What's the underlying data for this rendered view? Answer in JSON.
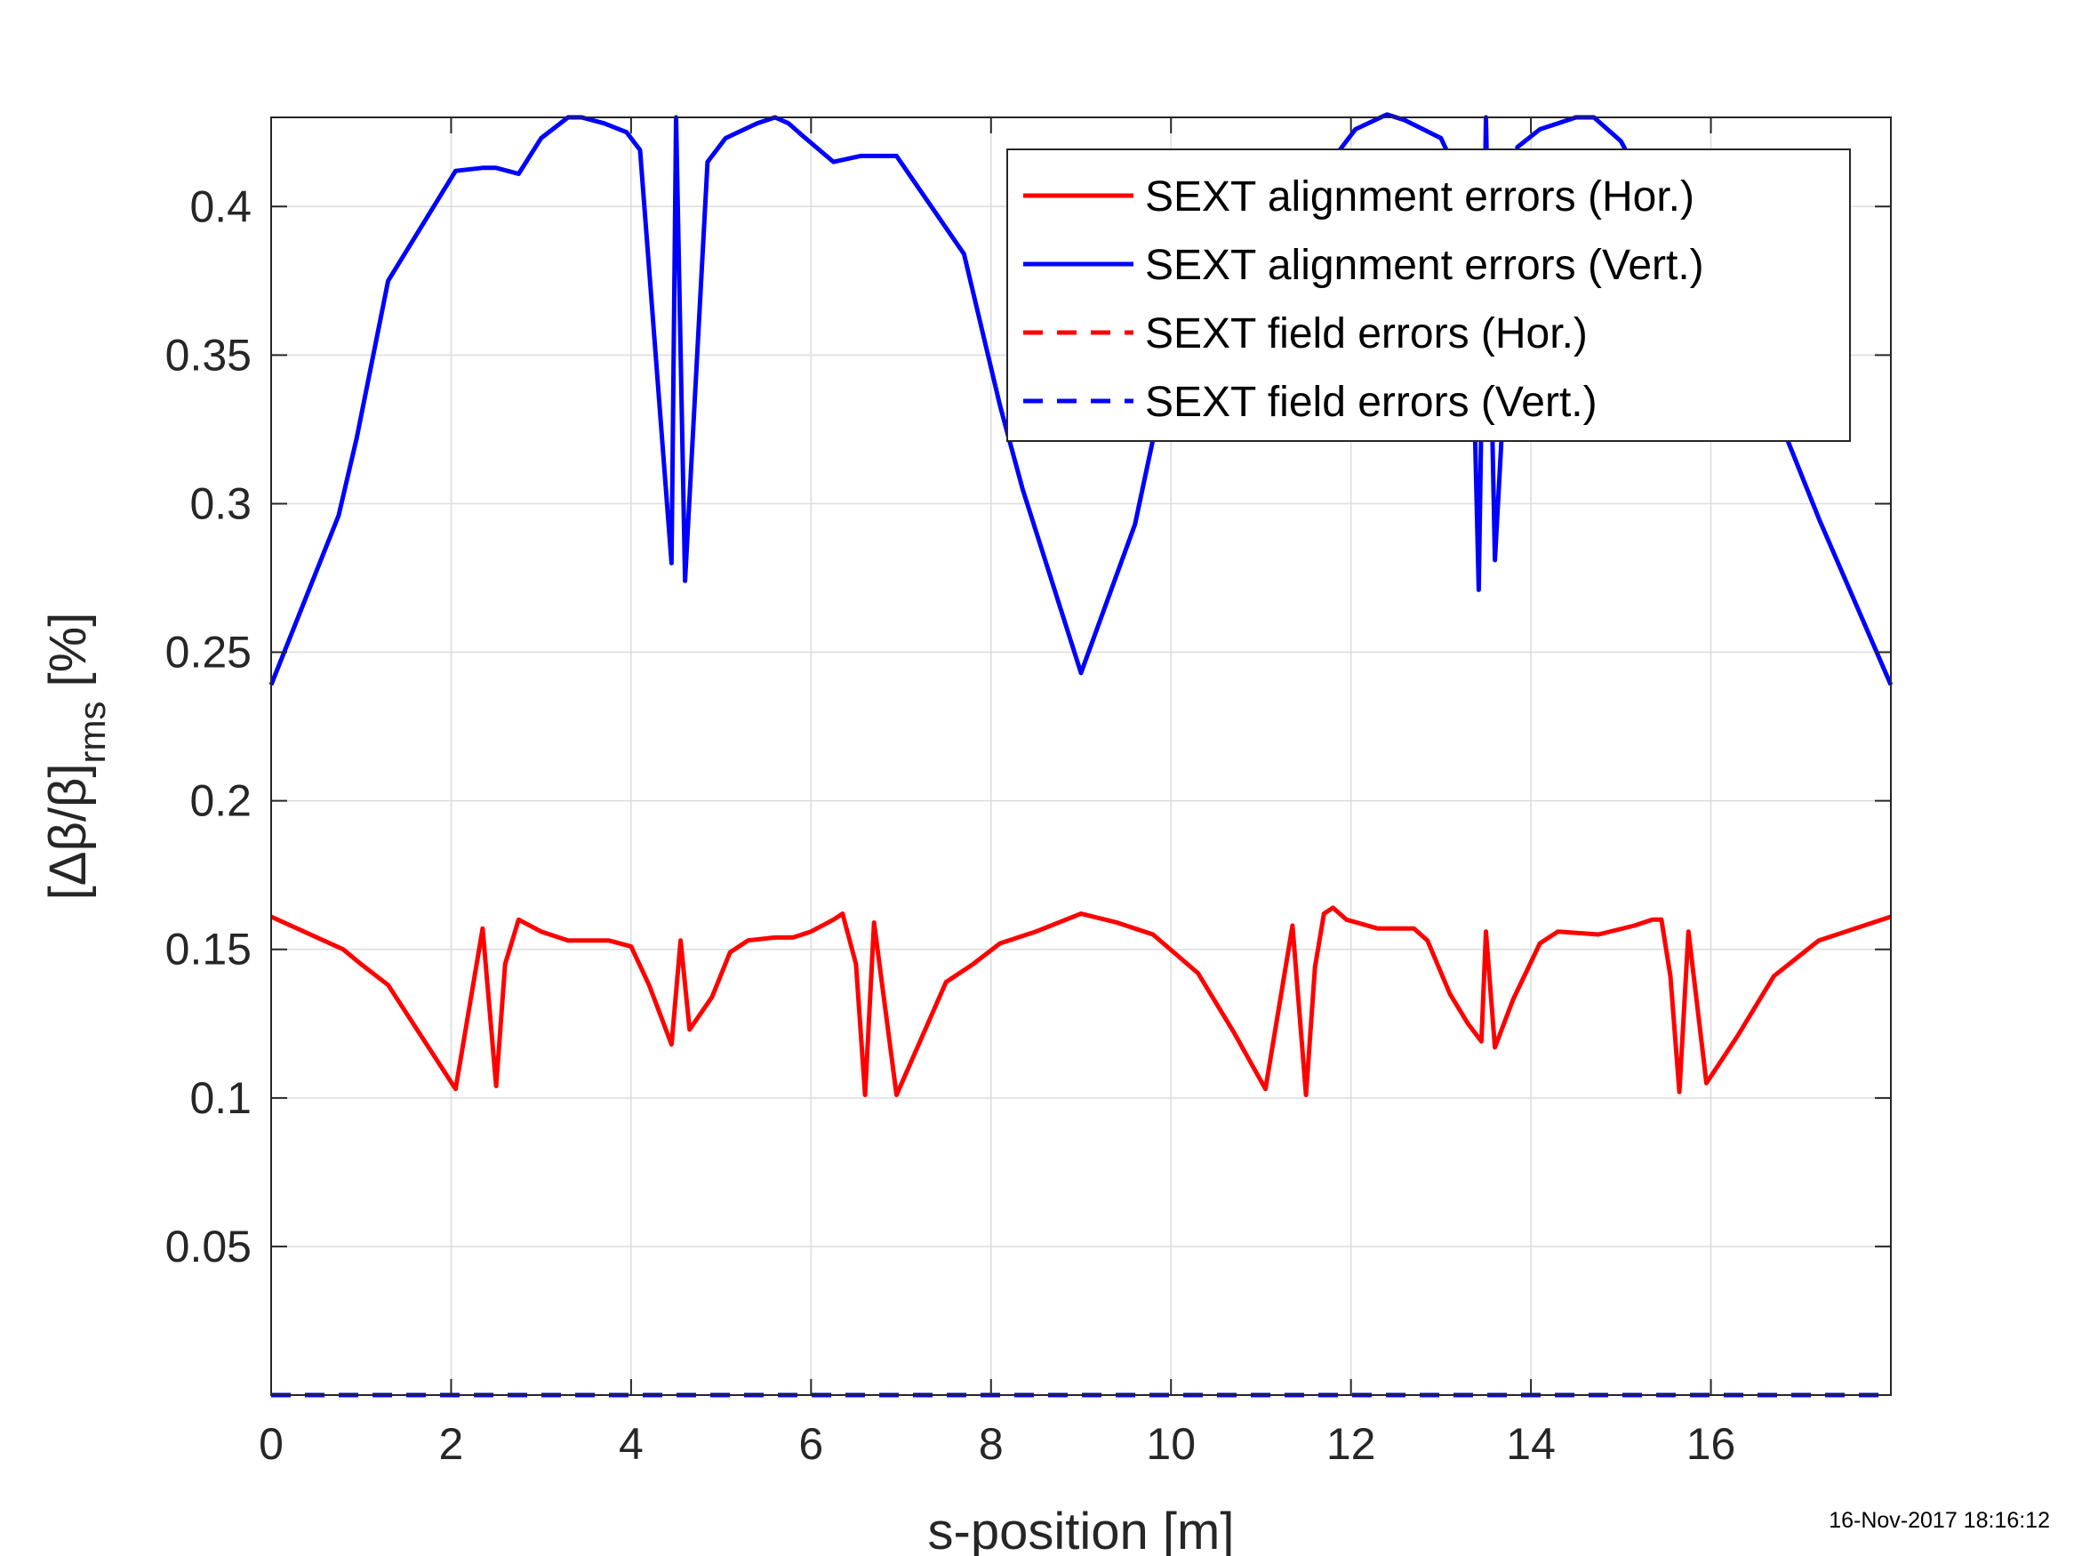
{
  "chart_data": {
    "type": "line",
    "title": "",
    "xlabel": "s-position [m]",
    "ylabel": {
      "main": "[Δβ/β]",
      "sub": "rms",
      "unit": " [%]"
    },
    "xlim": [
      0,
      18
    ],
    "ylim": [
      0,
      0.43
    ],
    "xticks": [
      0,
      2,
      4,
      6,
      8,
      10,
      12,
      14,
      16
    ],
    "yticks": [
      0.05,
      0.1,
      0.15,
      0.2,
      0.25,
      0.3,
      0.35,
      0.4
    ],
    "xtick_labels": [
      "0",
      "2",
      "4",
      "6",
      "8",
      "10",
      "12",
      "14",
      "16"
    ],
    "ytick_labels": [
      "0.05",
      "0.1",
      "0.15",
      "0.2",
      "0.25",
      "0.3",
      "0.35",
      "0.4"
    ],
    "grid": true,
    "legend_position": "top-right",
    "series": [
      {
        "name": "SEXT alignment errors (Hor.)",
        "color": "#ff0000",
        "dash": "solid",
        "x": [
          0,
          0.8,
          1.0,
          1.3,
          2.05,
          2.35,
          2.5,
          2.6,
          2.75,
          3.0,
          3.3,
          3.75,
          4.0,
          4.2,
          4.45,
          4.55,
          4.65,
          4.9,
          5.1,
          5.3,
          5.6,
          5.8,
          6.0,
          6.25,
          6.35,
          6.5,
          6.6,
          6.7,
          6.95,
          7.5,
          7.8,
          8.1,
          8.5,
          9.0,
          9.4,
          9.8,
          10.3,
          10.7,
          11.05,
          11.35,
          11.5,
          11.6,
          11.7,
          11.8,
          11.95,
          12.3,
          12.7,
          12.85,
          13.1,
          13.3,
          13.45,
          13.5,
          13.6,
          13.8,
          14.1,
          14.3,
          14.75,
          15.15,
          15.35,
          15.45,
          15.55,
          15.65,
          15.75,
          15.95,
          16.3,
          16.7,
          17.2,
          18.0
        ],
        "y": [
          0.161,
          0.15,
          0.145,
          0.138,
          0.103,
          0.157,
          0.104,
          0.145,
          0.16,
          0.156,
          0.153,
          0.153,
          0.151,
          0.138,
          0.118,
          0.153,
          0.123,
          0.134,
          0.149,
          0.153,
          0.154,
          0.154,
          0.156,
          0.16,
          0.162,
          0.145,
          0.101,
          0.159,
          0.101,
          0.139,
          0.145,
          0.152,
          0.156,
          0.162,
          0.159,
          0.155,
          0.142,
          0.122,
          0.103,
          0.158,
          0.101,
          0.144,
          0.162,
          0.164,
          0.16,
          0.157,
          0.157,
          0.153,
          0.135,
          0.125,
          0.119,
          0.156,
          0.117,
          0.133,
          0.152,
          0.156,
          0.155,
          0.158,
          0.16,
          0.16,
          0.141,
          0.102,
          0.156,
          0.105,
          0.121,
          0.141,
          0.153,
          0.161
        ]
      },
      {
        "name": "SEXT alignment errors (Vert.)",
        "color": "#0000ff",
        "dash": "solid",
        "x": [
          0,
          0.75,
          0.95,
          1.3,
          2.05,
          2.35,
          2.5,
          2.75,
          3.0,
          3.3,
          3.45,
          3.7,
          3.95,
          4.1,
          4.45,
          4.5,
          4.6,
          4.85,
          5.05,
          5.4,
          5.6,
          5.75,
          5.9,
          6.25,
          6.55,
          6.95,
          7.7,
          8.1,
          8.35,
          9.0,
          9.6,
          10.0,
          10.45,
          10.75,
          11.1,
          11.35,
          11.6,
          11.8,
          12.05,
          12.4,
          12.6,
          13.0,
          13.2,
          13.35,
          13.42,
          13.5,
          13.6,
          13.85,
          14.1,
          14.3,
          14.5,
          14.7,
          15.0,
          15.4,
          15.8,
          16.5,
          17.2,
          18.0
        ],
        "y": [
          0.239,
          0.296,
          0.322,
          0.375,
          0.412,
          0.413,
          0.413,
          0.411,
          0.423,
          0.43,
          0.43,
          0.428,
          0.425,
          0.419,
          0.28,
          0.43,
          0.274,
          0.415,
          0.423,
          0.428,
          0.43,
          0.428,
          0.424,
          0.415,
          0.417,
          0.417,
          0.384,
          0.333,
          0.305,
          0.243,
          0.293,
          0.35,
          0.37,
          0.383,
          0.4,
          0.409,
          0.413,
          0.416,
          0.426,
          0.431,
          0.429,
          0.423,
          0.41,
          0.36,
          0.271,
          0.43,
          0.281,
          0.42,
          0.426,
          0.428,
          0.43,
          0.43,
          0.422,
          0.399,
          0.375,
          0.348,
          0.295,
          0.239
        ]
      },
      {
        "name": "SEXT field errors (Hor.)",
        "color": "#ff0000",
        "dash": "dashed",
        "x": [
          0,
          18
        ],
        "y": [
          0.0,
          0.0
        ]
      },
      {
        "name": "SEXT field errors (Vert.)",
        "color": "#0000ff",
        "dash": "dashed",
        "x": [
          0,
          18
        ],
        "y": [
          0.0,
          0.0
        ]
      }
    ]
  },
  "timestamp": "16-Nov-2017 18:16:12"
}
